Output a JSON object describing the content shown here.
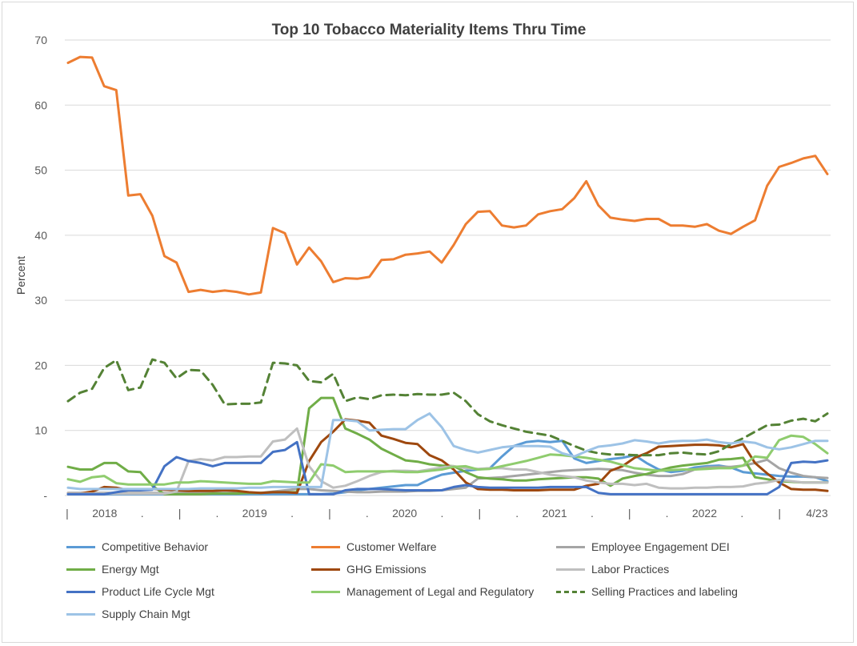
{
  "chart_data": {
    "type": "line",
    "title": "Top 10 Tobacco Materiality Items Thru Time",
    "ylabel": "Percent",
    "xlabel": "",
    "ylim": [
      0,
      70
    ],
    "yticks": [
      "-",
      "10",
      "20",
      "30",
      "40",
      "50",
      "60",
      "70"
    ],
    "xtick_labels": [
      "|",
      "2018",
      ".",
      "|",
      ".",
      "2019",
      ".",
      "|",
      ".",
      "2020",
      ".",
      "|",
      ".",
      "2021",
      ".",
      "|",
      ".",
      "2022",
      ".",
      "|",
      "4/23"
    ],
    "grid": "horizontal",
    "legend_position": "bottom",
    "n_points": 64,
    "series": [
      {
        "name": "Competitive Behavior",
        "color": "#5b9bd5",
        "dash": "solid",
        "values": [
          0.2,
          0.2,
          0.2,
          0.2,
          0.2,
          0.2,
          0.2,
          0.2,
          0.2,
          0.2,
          0.2,
          0.2,
          0.2,
          0.2,
          0.2,
          0.2,
          0.2,
          0.2,
          0.2,
          0.2,
          0.2,
          0.2,
          0.3,
          0.5,
          0.8,
          1.0,
          1.2,
          1.4,
          1.6,
          1.6,
          2.5,
          3.2,
          3.5,
          3.8,
          4.0,
          4.2,
          6.0,
          7.6,
          8.2,
          8.4,
          8.2,
          8.4,
          5.7,
          5.0,
          5.3,
          5.6,
          5.8,
          6.2,
          5.0,
          4.0,
          3.6,
          3.8,
          4.3,
          4.5,
          4.6,
          4.3,
          3.6,
          3.4,
          3.2,
          3.0,
          2.9,
          2.9,
          2.8,
          2.2
        ]
      },
      {
        "name": "Customer Welfare",
        "color": "#ed7d31",
        "dash": "solid",
        "values": [
          66.5,
          67.4,
          67.3,
          62.9,
          62.3,
          46.1,
          46.3,
          43.0,
          36.8,
          35.8,
          31.3,
          31.6,
          31.3,
          31.5,
          31.3,
          30.9,
          31.2,
          41.1,
          40.3,
          35.5,
          38.1,
          36.0,
          32.8,
          33.4,
          33.3,
          33.6,
          36.2,
          36.3,
          37.0,
          37.2,
          37.5,
          35.8,
          38.5,
          41.7,
          43.6,
          43.7,
          41.5,
          41.2,
          41.5,
          43.2,
          43.7,
          44.0,
          45.7,
          48.3,
          44.6,
          42.7,
          42.4,
          42.2,
          42.5,
          42.5,
          41.5,
          41.5,
          41.3,
          41.7,
          40.7,
          40.2,
          41.3,
          42.3,
          47.6,
          50.5,
          51.1,
          51.8,
          52.2,
          49.4
        ]
      },
      {
        "name": "Employee Engagement DEI",
        "color": "#a5a5a5",
        "dash": "solid",
        "values": [
          0.4,
          0.4,
          0.4,
          0.4,
          0.4,
          0.4,
          0.4,
          0.4,
          0.4,
          0.4,
          0.4,
          0.4,
          0.4,
          0.4,
          0.4,
          0.4,
          0.4,
          0.6,
          0.8,
          1.0,
          1.0,
          0.8,
          0.7,
          0.6,
          0.5,
          0.5,
          0.6,
          0.6,
          0.6,
          0.7,
          0.7,
          0.8,
          1.0,
          1.2,
          2.6,
          2.7,
          2.8,
          3.0,
          3.2,
          3.4,
          3.6,
          3.8,
          3.9,
          4.0,
          4.1,
          4.0,
          3.9,
          3.5,
          3.2,
          3.0,
          3.0,
          3.3,
          4.0,
          4.3,
          4.4,
          4.4,
          4.6,
          5.0,
          5.5,
          4.2,
          3.5,
          3.0,
          2.8,
          2.7
        ]
      },
      {
        "name": "Energy Mgt",
        "color": "#70ad47",
        "dash": "solid",
        "values": [
          4.4,
          4.0,
          4.0,
          5.0,
          5.0,
          3.7,
          3.6,
          1.5,
          0.2,
          0.2,
          0.2,
          0.2,
          0.3,
          0.3,
          0.3,
          0.4,
          0.4,
          0.5,
          0.5,
          0.5,
          13.4,
          15.0,
          15.0,
          10.3,
          9.5,
          8.6,
          7.2,
          6.3,
          5.4,
          5.2,
          4.8,
          4.6,
          4.5,
          3.6,
          2.8,
          2.6,
          2.5,
          2.3,
          2.3,
          2.5,
          2.6,
          2.7,
          2.8,
          2.8,
          2.6,
          1.5,
          2.6,
          3.0,
          3.3,
          3.8,
          4.3,
          4.6,
          4.8,
          5.0,
          5.5,
          5.6,
          5.8,
          2.8,
          2.5,
          2.2,
          2.1,
          2.0,
          2.0,
          2.0
        ]
      },
      {
        "name": "GHG Emissions",
        "color": "#9e480e",
        "dash": "solid",
        "values": [
          0.3,
          0.3,
          0.6,
          1.3,
          1.2,
          0.8,
          0.9,
          1.0,
          0.9,
          0.8,
          0.7,
          0.7,
          0.7,
          0.8,
          0.7,
          0.5,
          0.4,
          0.5,
          0.5,
          0.4,
          5.3,
          8.2,
          9.8,
          11.7,
          11.5,
          11.2,
          9.2,
          8.7,
          8.1,
          7.9,
          6.2,
          5.4,
          4.0,
          2.0,
          1.0,
          0.9,
          0.9,
          0.8,
          0.8,
          0.8,
          0.9,
          0.9,
          0.9,
          1.5,
          1.8,
          3.8,
          4.5,
          5.8,
          6.5,
          7.5,
          7.6,
          7.7,
          7.8,
          7.8,
          7.7,
          7.4,
          7.9,
          5.0,
          3.4,
          2.0,
          1.0,
          0.9,
          0.9,
          0.7
        ]
      },
      {
        "name": "Labor Practices",
        "color": "#bfbfbf",
        "dash": "solid",
        "values": [
          0.3,
          0.3,
          0.3,
          0.3,
          0.3,
          0.3,
          0.3,
          0.3,
          0.3,
          0.6,
          5.3,
          5.6,
          5.4,
          5.9,
          5.9,
          6.0,
          6.0,
          8.3,
          8.6,
          10.3,
          4.5,
          2.2,
          1.2,
          1.5,
          2.2,
          3.0,
          3.6,
          3.8,
          3.8,
          3.7,
          4.0,
          4.3,
          4.5,
          4.2,
          4.1,
          4.2,
          4.2,
          4.0,
          4.0,
          3.6,
          3.2,
          3.0,
          2.8,
          2.3,
          2.0,
          1.8,
          1.8,
          1.6,
          1.8,
          1.2,
          1.1,
          1.1,
          1.2,
          1.2,
          1.3,
          1.3,
          1.4,
          1.8,
          2.0,
          2.4,
          2.2,
          2.0,
          2.0,
          2.0
        ]
      },
      {
        "name": "Product Life Cycle Mgt",
        "color": "#4472c4",
        "dash": "solid",
        "values": [
          0.2,
          0.2,
          0.2,
          0.2,
          0.5,
          0.8,
          0.8,
          0.9,
          4.5,
          5.9,
          5.3,
          5.0,
          4.5,
          5.0,
          5.0,
          5.0,
          5.0,
          6.7,
          7.0,
          8.2,
          0.2,
          0.2,
          0.2,
          0.8,
          1.0,
          1.0,
          1.0,
          0.9,
          0.8,
          0.8,
          0.8,
          0.8,
          1.3,
          1.6,
          1.3,
          1.2,
          1.2,
          1.2,
          1.2,
          1.2,
          1.3,
          1.3,
          1.3,
          1.3,
          0.4,
          0.2,
          0.2,
          0.2,
          0.2,
          0.2,
          0.2,
          0.2,
          0.2,
          0.2,
          0.2,
          0.2,
          0.2,
          0.2,
          0.2,
          1.3,
          5.0,
          5.2,
          5.1,
          5.4
        ]
      },
      {
        "name": "Management of Legal and Regulatory",
        "color": "#8fcc6e",
        "dash": "solid",
        "values": [
          2.5,
          2.1,
          2.8,
          3.0,
          1.9,
          1.7,
          1.7,
          1.7,
          1.7,
          2.0,
          2.0,
          2.2,
          2.1,
          2.0,
          1.9,
          1.8,
          1.8,
          2.2,
          2.1,
          2.0,
          2.0,
          4.8,
          4.6,
          3.6,
          3.7,
          3.7,
          3.7,
          3.7,
          3.6,
          3.6,
          3.8,
          4.0,
          4.4,
          4.5,
          4.0,
          4.1,
          4.5,
          4.9,
          5.3,
          5.8,
          6.3,
          6.2,
          6.0,
          5.8,
          5.5,
          5.2,
          4.7,
          4.2,
          4.0,
          3.8,
          3.9,
          4.0,
          4.0,
          4.1,
          4.2,
          4.2,
          4.6,
          6.0,
          5.8,
          8.5,
          9.2,
          9.0,
          7.9,
          6.5
        ]
      },
      {
        "name": "Selling Practices and labeling",
        "color": "#548235",
        "dash": "dashed",
        "values": [
          14.5,
          15.8,
          16.4,
          19.6,
          20.8,
          16.2,
          16.6,
          20.9,
          20.4,
          18.0,
          19.3,
          19.2,
          17.0,
          14.0,
          14.1,
          14.1,
          14.3,
          20.4,
          20.3,
          20.0,
          17.6,
          17.4,
          18.7,
          14.5,
          15.1,
          14.8,
          15.4,
          15.5,
          15.4,
          15.6,
          15.5,
          15.5,
          15.8,
          14.5,
          12.5,
          11.4,
          10.8,
          10.3,
          9.8,
          9.5,
          9.2,
          8.4,
          7.6,
          6.9,
          6.5,
          6.3,
          6.3,
          6.2,
          6.2,
          6.2,
          6.5,
          6.6,
          6.4,
          6.3,
          6.8,
          7.9,
          8.8,
          9.8,
          10.8,
          10.9,
          11.5,
          11.8,
          11.4,
          12.6
        ]
      },
      {
        "name": "Supply Chain Mgt",
        "color": "#9dc3e6",
        "dash": "solid",
        "values": [
          1.2,
          1.0,
          1.0,
          1.0,
          1.0,
          1.0,
          1.0,
          1.0,
          1.0,
          1.0,
          1.0,
          1.1,
          1.1,
          1.1,
          1.1,
          1.2,
          1.2,
          1.3,
          1.3,
          1.3,
          1.3,
          1.3,
          11.6,
          11.6,
          11.4,
          10.0,
          10.1,
          10.2,
          10.2,
          11.6,
          12.6,
          10.5,
          7.6,
          7.0,
          6.6,
          7.0,
          7.4,
          7.6,
          7.6,
          7.6,
          7.5,
          6.5,
          6.0,
          6.8,
          7.5,
          7.7,
          8.0,
          8.5,
          8.3,
          8.0,
          8.3,
          8.4,
          8.4,
          8.6,
          8.2,
          8.0,
          8.3,
          8.1,
          7.4,
          7.1,
          7.4,
          7.9,
          8.4,
          8.4
        ]
      }
    ]
  }
}
